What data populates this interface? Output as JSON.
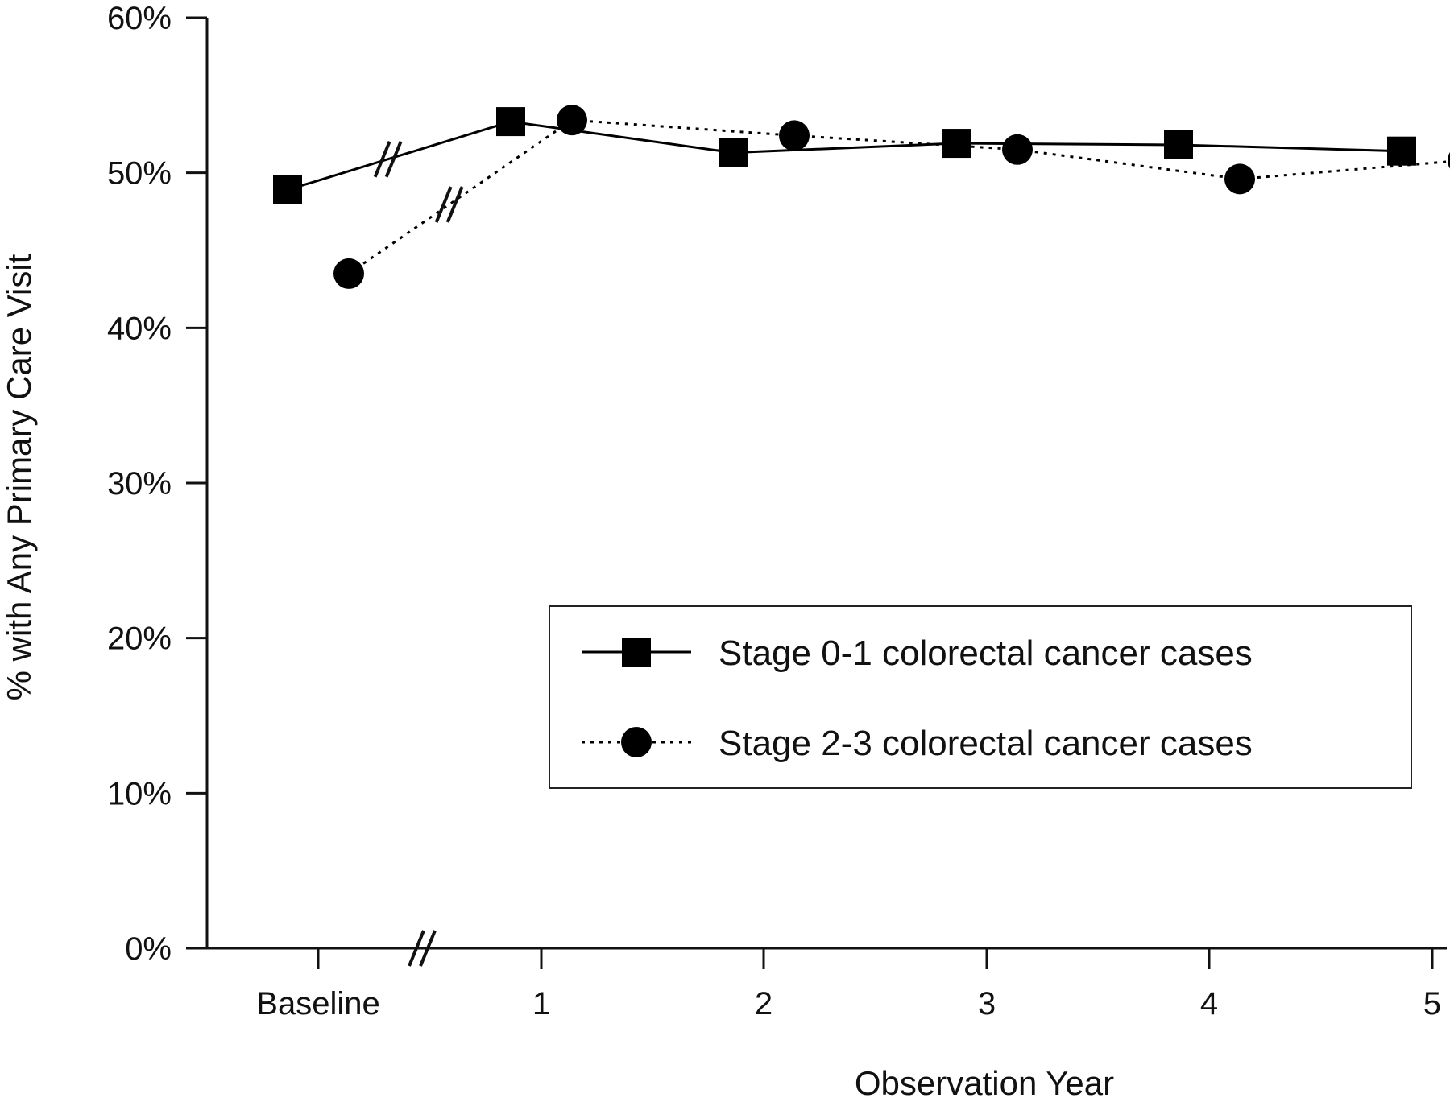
{
  "chart_data": {
    "type": "line",
    "title": "",
    "xlabel": "Observation Year",
    "ylabel": "% with Any Primary Care Visit",
    "categories": [
      "Baseline",
      "1",
      "2",
      "3",
      "4",
      "5"
    ],
    "y_tick_labels": [
      "0%",
      "10%",
      "20%",
      "30%",
      "40%",
      "50%",
      "60%"
    ],
    "ylim": [
      0,
      60
    ],
    "y_unit": "%",
    "grid": false,
    "axis_break": "between Baseline and 1",
    "legend_position": "lower-right",
    "series": [
      {
        "name": "Stage 0-1 colorectal cancer cases",
        "marker": "square",
        "line_style": "solid",
        "color": "#000000",
        "values": [
          48.9,
          53.3,
          51.3,
          51.9,
          51.8,
          51.4
        ]
      },
      {
        "name": "Stage 2-3 colorectal cancer cases",
        "marker": "circle",
        "line_style": "dotted",
        "color": "#000000",
        "values": [
          43.5,
          53.4,
          52.4,
          51.5,
          49.6,
          50.8
        ]
      }
    ]
  }
}
